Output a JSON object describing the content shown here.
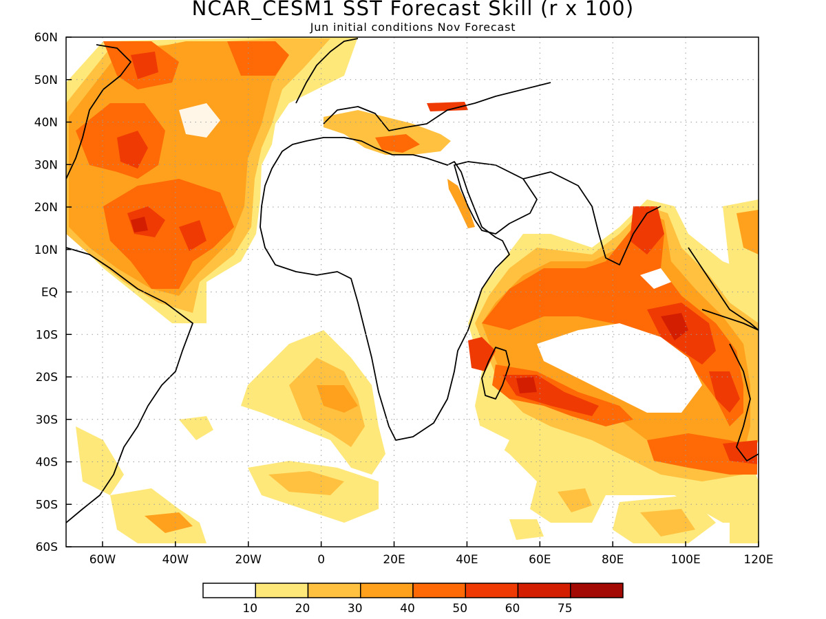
{
  "title": "NCAR_CESM1 SST Forecast Skill (r x 100)",
  "subtitle": "Jun initial conditions  Nov Forecast",
  "map": {
    "lon_range": [
      -70,
      120
    ],
    "lat_range": [
      -60,
      60
    ],
    "lon_ticks": [
      {
        "lon": -60,
        "label": "60W"
      },
      {
        "lon": -40,
        "label": "40W"
      },
      {
        "lon": -20,
        "label": "20W"
      },
      {
        "lon": 0,
        "label": "0"
      },
      {
        "lon": 20,
        "label": "20E"
      },
      {
        "lon": 40,
        "label": "40E"
      },
      {
        "lon": 60,
        "label": "60E"
      },
      {
        "lon": 80,
        "label": "80E"
      },
      {
        "lon": 100,
        "label": "100E"
      },
      {
        "lon": 120,
        "label": "120E"
      }
    ],
    "lat_ticks": [
      {
        "lat": 60,
        "label": "60N"
      },
      {
        "lat": 50,
        "label": "50N"
      },
      {
        "lat": 40,
        "label": "40N"
      },
      {
        "lat": 30,
        "label": "30N"
      },
      {
        "lat": 20,
        "label": "20N"
      },
      {
        "lat": 10,
        "label": "10N"
      },
      {
        "lat": 0,
        "label": "EQ"
      },
      {
        "lat": -10,
        "label": "10S"
      },
      {
        "lat": -20,
        "label": "20S"
      },
      {
        "lat": -30,
        "label": "30S"
      },
      {
        "lat": -40,
        "label": "40S"
      },
      {
        "lat": -50,
        "label": "50S"
      },
      {
        "lat": -60,
        "label": "60S"
      }
    ],
    "grid": true,
    "colorbar": {
      "colors": [
        "#ffffff",
        "#ffe87a",
        "#ffc13f",
        "#ffa11c",
        "#ff6a06",
        "#f03a03",
        "#d41e02",
        "#a30a04"
      ],
      "labels": [
        "10",
        "20",
        "30",
        "40",
        "50",
        "60",
        "75"
      ]
    }
  }
}
